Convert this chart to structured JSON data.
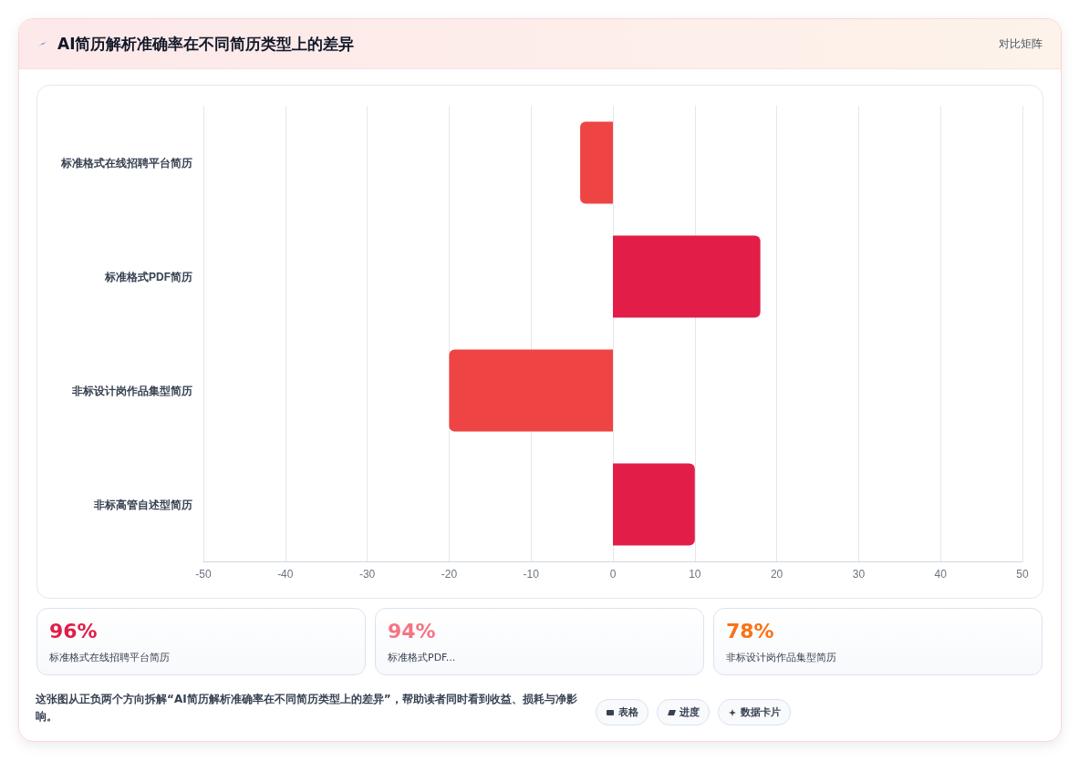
{
  "chart_data": {
    "type": "bar",
    "orientation": "horizontal",
    "title": "AI简历解析准确率在不同简历类型上的差异",
    "categories": [
      "标准格式在线招聘平台简历",
      "标准格式PDF简历",
      "非标设计岗作品集型简历",
      "非标高管自述型简历"
    ],
    "values": [
      -4,
      18,
      -20,
      10
    ],
    "colors": [
      "#ef4444",
      "#e11d48",
      "#ef4444",
      "#e11d48"
    ],
    "xlim": [
      -50,
      50
    ],
    "xticks": [
      -50,
      -40,
      -30,
      -20,
      -10,
      0,
      10,
      20,
      30,
      40,
      50
    ],
    "grid": "x",
    "annotations": [
      "对比矩阵",
      "96%",
      "标准格式在线招聘平台简历",
      "94%",
      "标准格式PDF...",
      "78%",
      "非标设计岗作品集型简历",
      "这张图从正负两个方向拆解“AI简历解析准确率在不同简历类型上的差异”，帮助读者同时看到收益、损耗与净影响。",
      "表格",
      "进度",
      "数据卡片"
    ]
  }
}
